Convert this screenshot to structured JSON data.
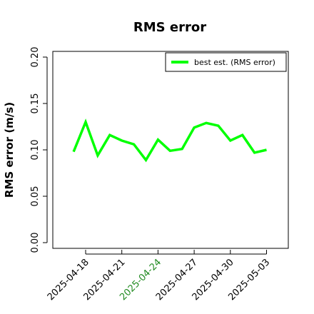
{
  "chart_data": {
    "type": "line",
    "title": "RMS error",
    "ylabel": "RMS error (m/s)",
    "xlabel": "",
    "ylim": [
      0.0,
      0.21
    ],
    "yticks": [
      "0.00",
      "0.05",
      "0.10",
      "0.15",
      "0.20"
    ],
    "ytick_values": [
      0.0,
      0.05,
      0.1,
      0.15,
      0.2
    ],
    "xticks": [
      "2025-04-18",
      "2025-04-21",
      "2025-04-24",
      "2025-04-27",
      "2025-04-30",
      "2025-05-03"
    ],
    "highlighted_xtick": "2025-04-24",
    "highlight_color": "#228B22",
    "legend": {
      "position": "top-right",
      "entries": [
        "best est. (RMS error)"
      ]
    },
    "grid": false,
    "series": [
      {
        "name": "best est. (RMS error)",
        "color": "#00ff00",
        "x": [
          "2025-04-17",
          "2025-04-18",
          "2025-04-19",
          "2025-04-20",
          "2025-04-21",
          "2025-04-22",
          "2025-04-23",
          "2025-04-24",
          "2025-04-25",
          "2025-04-26",
          "2025-04-27",
          "2025-04-28",
          "2025-04-29",
          "2025-04-30",
          "2025-05-01",
          "2025-05-02",
          "2025-05-03"
        ],
        "values": [
          0.098,
          0.13,
          0.094,
          0.116,
          0.11,
          0.106,
          0.089,
          0.111,
          0.099,
          0.101,
          0.124,
          0.129,
          0.126,
          0.11,
          0.116,
          0.097,
          0.1
        ]
      }
    ]
  }
}
